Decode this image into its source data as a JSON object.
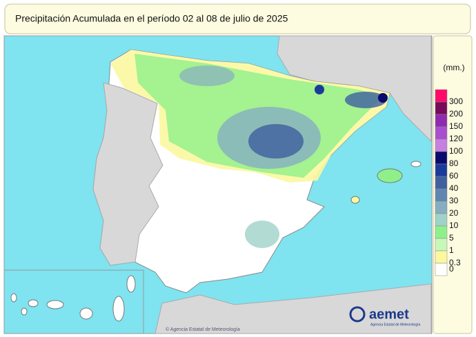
{
  "title": "Precipitación Acumulada en el período 02 al 08 de julio de 2025",
  "legend": {
    "unit": "(mm.)",
    "classes": [
      {
        "label": "300",
        "color": "#ff0a6a"
      },
      {
        "label": "200",
        "color": "#7a0a5a"
      },
      {
        "label": "150",
        "color": "#8e2bb0"
      },
      {
        "label": "120",
        "color": "#a84fd0"
      },
      {
        "label": "100",
        "color": "#c77fe0"
      },
      {
        "label": "80",
        "color": "#0a0a6e"
      },
      {
        "label": "60",
        "color": "#1c3a9a"
      },
      {
        "label": "40",
        "color": "#3f5f9f"
      },
      {
        "label": "30",
        "color": "#5f86b0"
      },
      {
        "label": "20",
        "color": "#86aec0"
      },
      {
        "label": "10",
        "color": "#9fd2c8"
      },
      {
        "label": "5",
        "color": "#8ff08a"
      },
      {
        "label": "1",
        "color": "#c8f8b8"
      },
      {
        "label": "0.3",
        "color": "#fbf8a0"
      },
      {
        "label": "0",
        "color": "#ffffff"
      }
    ]
  },
  "logo": {
    "name": "aemet",
    "subtitle": "Agencia Estatal de Meteorología"
  },
  "credit": "© Agencia Estatal de Meteorología"
}
